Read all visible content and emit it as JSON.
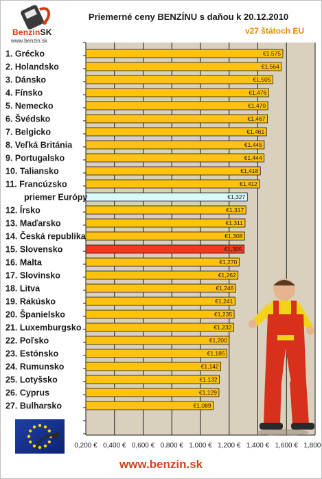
{
  "header": {
    "logo_word": "Benzin",
    "logo_suffix": "SK",
    "logo_url": "www.benzin.sk",
    "title": "Priemerné ceny BENZÍNU s daňou k 20.12.2010",
    "subtitle": "v27 štátoch EU"
  },
  "footer": {
    "url": "www.benzin.sk"
  },
  "colors": {
    "bar": "#ffc20e",
    "bar_europe": "#d8fbf8",
    "bar_slovakia": "#ef3b1c",
    "label_europe": "#3fa6d6",
    "label_slovakia": "#c9440f",
    "plot_background": "#d9d1bd"
  },
  "chart_data": {
    "type": "bar",
    "orientation": "horizontal",
    "title": "Priemerné ceny BENZÍNU s daňou k 20.12.2010",
    "subtitle": "v27 štátoch EU",
    "xlabel": "",
    "ylabel": "",
    "xlim": [
      0.2,
      1.8
    ],
    "grid": "vertical",
    "x_ticks": [
      "0,200 €",
      "0,400 €",
      "0,600 €",
      "0,800 €",
      "1,000 €",
      "1,200 €",
      "1,400 €",
      "1,600 €",
      "1,800 €"
    ],
    "categories": [
      "1. Grécko",
      "2. Holandsko",
      "3. Dánsko",
      "4. Fínsko",
      "5. Nemecko",
      "6. Švédsko",
      "7. Belgicko",
      "8. Veľká Británia",
      "9. Portugalsko",
      "10. Taliansko",
      "11. Francúzsko",
      "priemer Európy",
      "12. Írsko",
      "13. Maďarsko",
      "14. Česká republika",
      "15. Slovensko",
      "16. Malta",
      "17. Slovinsko",
      "18. Litva",
      "19. Rakúsko",
      "20. Španielsko",
      "21. Luxemburgsko",
      "22. Poľsko",
      "23. Estónsko",
      "24. Rumunsko",
      "25. Lotyšsko",
      "26. Cyprus",
      "27. Bulharsko"
    ],
    "values": [
      1.575,
      1.564,
      1.505,
      1.476,
      1.47,
      1.467,
      1.461,
      1.445,
      1.444,
      1.418,
      1.412,
      1.327,
      1.317,
      1.311,
      1.308,
      1.305,
      1.27,
      1.262,
      1.246,
      1.241,
      1.235,
      1.232,
      1.2,
      1.185,
      1.142,
      1.132,
      1.129,
      1.089
    ],
    "value_labels": [
      "€1,575",
      "€1,564",
      "€1,505",
      "€1,476",
      "€1,470",
      "€1,467",
      "€1,461",
      "€1,445",
      "€1,444",
      "€1,418",
      "€1,412",
      "€1,327",
      "€1,317",
      "€1,311",
      "€1,308",
      "€1,305",
      "€1,270",
      "€1,262",
      "€1,246",
      "€1,241",
      "€1,235",
      "€1,232",
      "€1,200",
      "€1,185",
      "€1,142",
      "€1,132",
      "€1,129",
      "€1,089"
    ],
    "highlight": {
      "priemer Európy": "europe",
      "15. Slovensko": "slovakia"
    }
  }
}
